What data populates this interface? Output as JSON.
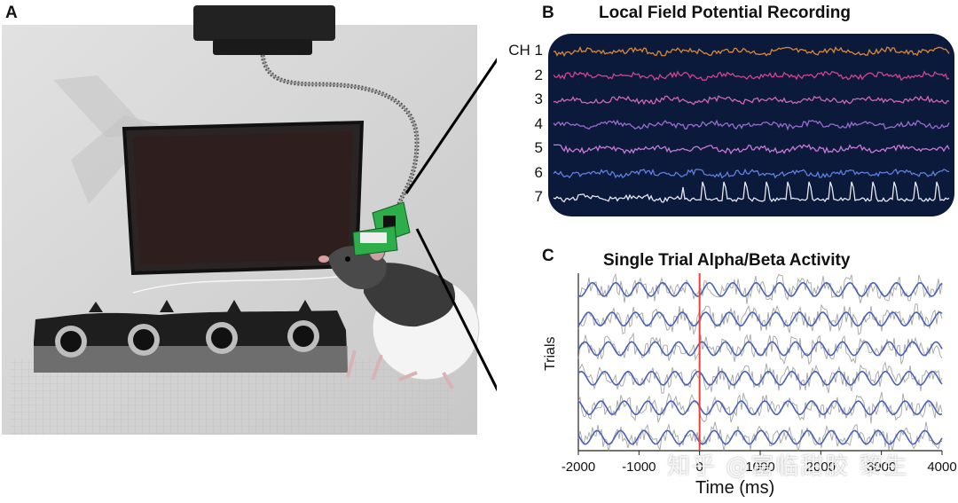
{
  "panels": {
    "a": {
      "label": "A"
    },
    "b": {
      "label": "B",
      "title": "Local Field Potential Recording"
    },
    "c": {
      "label": "C",
      "title": "Single Trial Alpha/Beta Activity"
    }
  },
  "colors": {
    "lfp_background": "#0b1a3a",
    "event_marker": "#e8423c",
    "filtered_trace": "#4a62b8",
    "raw_trace": "#8f8f8f"
  },
  "chart_data": [
    {
      "type": "line",
      "title": "Local Field Potential Recording",
      "series": [
        {
          "name": "CH 1",
          "label": "CH 1",
          "color": "#d98a3a"
        },
        {
          "name": "2",
          "label": "2",
          "color": "#d2448e"
        },
        {
          "name": "3",
          "label": "3",
          "color": "#cf67b8"
        },
        {
          "name": "4",
          "label": "4",
          "color": "#9a6bd1"
        },
        {
          "name": "5",
          "label": "5",
          "color": "#c57ad8"
        },
        {
          "name": "6",
          "label": "6",
          "color": "#5f7fe0"
        },
        {
          "name": "7",
          "label": "7",
          "color": "#e6e6f0"
        }
      ]
    },
    {
      "type": "line",
      "title": "Single Trial Alpha/Beta Activity",
      "xlabel": "Time  (ms)",
      "ylabel": "Trials",
      "xlim": [
        -2000,
        4000
      ],
      "xticks": [
        "-2000",
        "-1000",
        "0",
        "1000",
        "2000",
        "3000",
        "4000"
      ],
      "event_time": 0,
      "trials": 6
    }
  ],
  "watermark": "知乎 @富临甜胶 黎生"
}
